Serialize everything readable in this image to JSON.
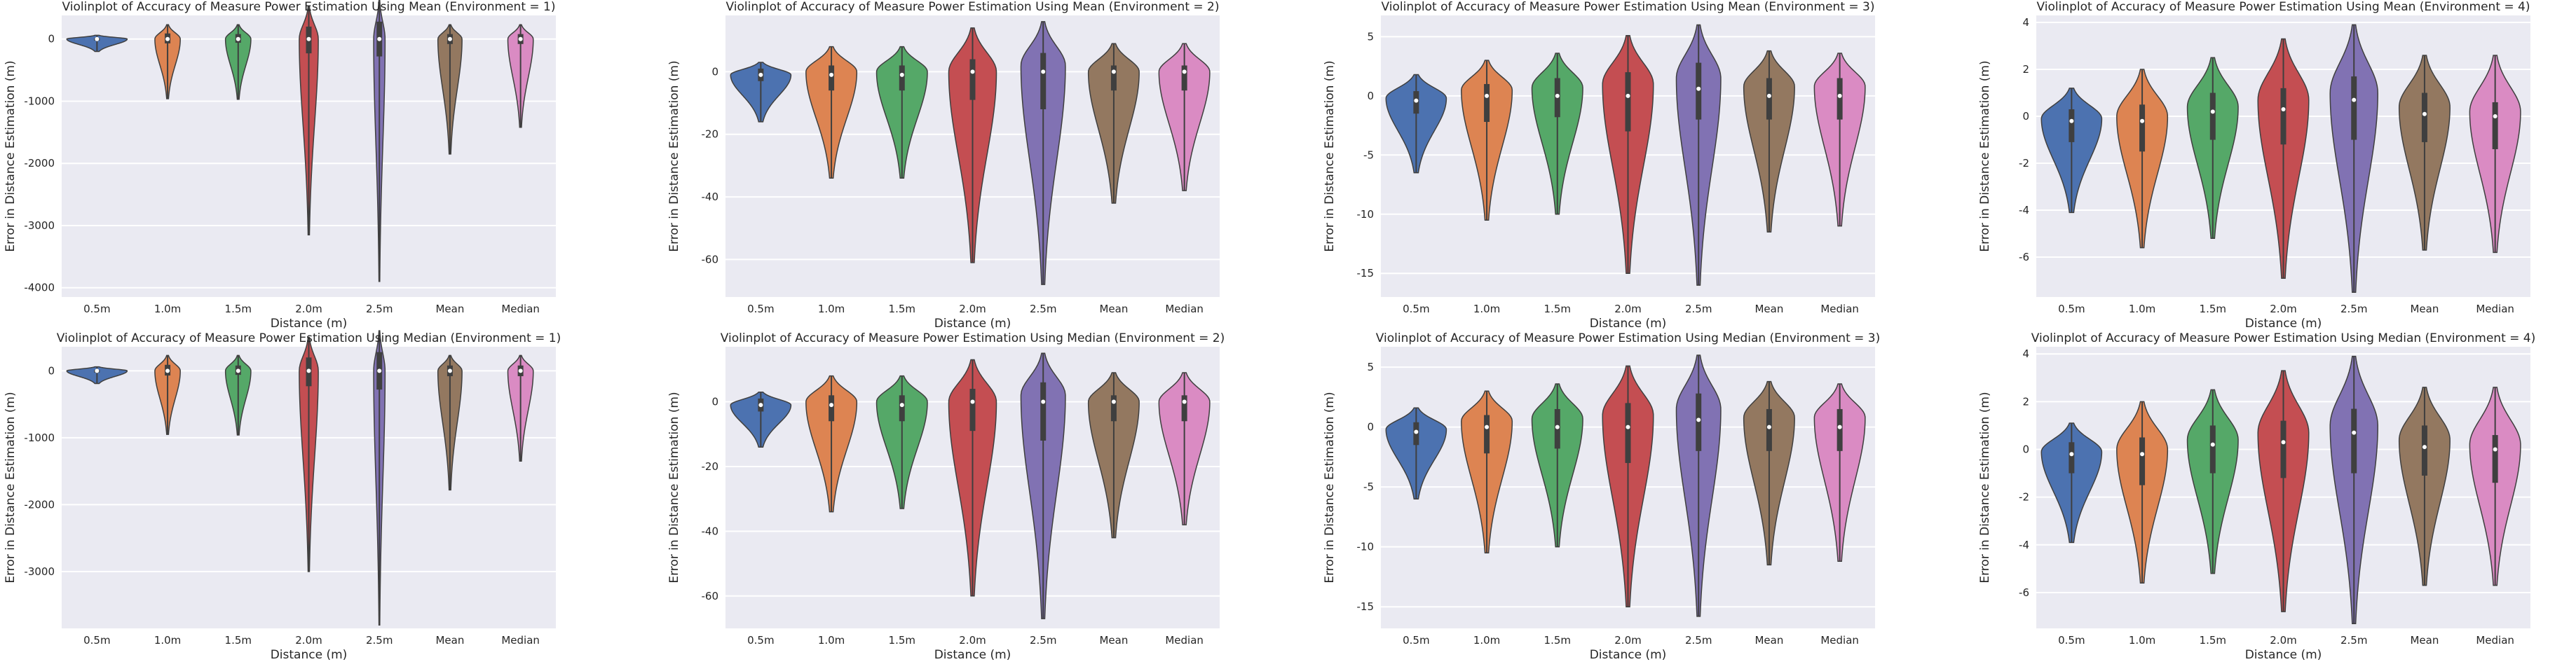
{
  "figure": {
    "background": "#ffffff",
    "plot_background": "#eaeaf2",
    "grid_color": "#ffffff"
  },
  "palette": [
    "#4c72b0",
    "#dd8452",
    "#55a868",
    "#c44e52",
    "#8172b3",
    "#937860",
    "#da8bc3"
  ],
  "chart_data": [
    {
      "type": "violin",
      "title": "Violinplot of Accuracy of Measure Power Estimation Using Mean (Environment = 1)",
      "xlabel": "Distance (m)",
      "ylabel": "Error in Distance Estimation (m)",
      "categories": [
        "0.5m",
        "1.0m",
        "1.5m",
        "2.0m",
        "2.5m",
        "Mean",
        "Median"
      ],
      "ylim": [
        -4150,
        380
      ],
      "yticks": [
        0,
        -1000,
        -2000,
        -3000,
        -4000
      ],
      "grid": true,
      "violins": [
        {
          "min": -200,
          "max": 60,
          "q1": -25,
          "median": 0,
          "q3": 15,
          "peak": 0,
          "width": 0.95
        },
        {
          "min": -960,
          "max": 230,
          "q1": -70,
          "median": 0,
          "q3": 90,
          "peak": 0,
          "width": 0.4
        },
        {
          "min": -970,
          "max": 230,
          "q1": -60,
          "median": 0,
          "q3": 80,
          "peak": 0,
          "width": 0.4
        },
        {
          "min": -3150,
          "max": 520,
          "q1": -230,
          "median": 0,
          "q3": 200,
          "peak": 0,
          "width": 0.3
        },
        {
          "min": -3900,
          "max": 620,
          "q1": -280,
          "median": 0,
          "q3": 280,
          "peak": 0,
          "width": 0.18
        },
        {
          "min": -1850,
          "max": 230,
          "q1": -80,
          "median": 0,
          "q3": 80,
          "peak": 0,
          "width": 0.38
        },
        {
          "min": -1420,
          "max": 230,
          "q1": -80,
          "median": 0,
          "q3": 80,
          "peak": 0,
          "width": 0.4
        }
      ]
    },
    {
      "type": "violin",
      "title": "Violinplot of Accuracy of Measure Power Estimation Using Mean (Environment = 2)",
      "xlabel": "Distance (m)",
      "ylabel": "Error in Distance Estimation (m)",
      "categories": [
        "0.5m",
        "1.0m",
        "1.5m",
        "2.0m",
        "2.5m",
        "Mean",
        "Median"
      ],
      "ylim": [
        -72,
        18
      ],
      "yticks": [
        0,
        -20,
        -40,
        -60
      ],
      "grid": true,
      "violins": [
        {
          "min": -16,
          "max": 3,
          "q1": -3,
          "median": -1,
          "q3": 1,
          "peak": -1,
          "width": 0.95
        },
        {
          "min": -34,
          "max": 8,
          "q1": -6,
          "median": -1,
          "q3": 2,
          "peak": 0,
          "width": 0.8
        },
        {
          "min": -34,
          "max": 8,
          "q1": -6,
          "median": -1,
          "q3": 2,
          "peak": 0,
          "width": 0.8
        },
        {
          "min": -61,
          "max": 14,
          "q1": -9,
          "median": 0,
          "q3": 4,
          "peak": 0,
          "width": 0.75
        },
        {
          "min": -68,
          "max": 16,
          "q1": -12,
          "median": 0,
          "q3": 6,
          "peak": 2,
          "width": 0.7
        },
        {
          "min": -42,
          "max": 9,
          "q1": -6,
          "median": 0,
          "q3": 2,
          "peak": 0,
          "width": 0.8
        },
        {
          "min": -38,
          "max": 9,
          "q1": -6,
          "median": 0,
          "q3": 2,
          "peak": 0,
          "width": 0.8
        }
      ]
    },
    {
      "type": "violin",
      "title": "Violinplot of Accuracy of Measure Power Estimation Using Mean (Environment = 3)",
      "xlabel": "Distance (m)",
      "ylabel": "Error in Distance Estimation (m)",
      "categories": [
        "0.5m",
        "1.0m",
        "1.5m",
        "2.0m",
        "2.5m",
        "Mean",
        "Median"
      ],
      "ylim": [
        -17,
        6.8
      ],
      "yticks": [
        5,
        0,
        -5,
        -10,
        -15
      ],
      "grid": true,
      "violins": [
        {
          "min": -6.5,
          "max": 1.8,
          "q1": -1.5,
          "median": -0.4,
          "q3": 0.4,
          "peak": -0.2,
          "width": 0.95
        },
        {
          "min": -10.5,
          "max": 3,
          "q1": -2.2,
          "median": 0,
          "q3": 1,
          "peak": 0.5,
          "width": 0.8
        },
        {
          "min": -10,
          "max": 3.6,
          "q1": -1.8,
          "median": 0,
          "q3": 1.5,
          "peak": 0.7,
          "width": 0.8
        },
        {
          "min": -15,
          "max": 5.1,
          "q1": -3,
          "median": 0,
          "q3": 2,
          "peak": 1,
          "width": 0.8
        },
        {
          "min": -16,
          "max": 6,
          "q1": -2,
          "median": 0.6,
          "q3": 2.8,
          "peak": 1.5,
          "width": 0.7
        },
        {
          "min": -11.5,
          "max": 3.8,
          "q1": -2,
          "median": 0,
          "q3": 1.5,
          "peak": 0.8,
          "width": 0.8
        },
        {
          "min": -11,
          "max": 3.6,
          "q1": -2,
          "median": 0,
          "q3": 1.5,
          "peak": 0.8,
          "width": 0.8
        }
      ]
    },
    {
      "type": "violin",
      "title": "Violinplot of Accuracy of Measure Power Estimation Using Mean (Environment = 4)",
      "xlabel": "Distance (m)",
      "ylabel": "Error in Distance Estimation (m)",
      "categories": [
        "0.5m",
        "1.0m",
        "1.5m",
        "2.0m",
        "2.5m",
        "Mean",
        "Median"
      ],
      "ylim": [
        -7.7,
        4.3
      ],
      "yticks": [
        4,
        2,
        0,
        -2,
        -4,
        -6
      ],
      "grid": true,
      "violins": [
        {
          "min": -4.1,
          "max": 1.2,
          "q1": -1.1,
          "median": -0.2,
          "q3": 0.3,
          "peak": -0.1,
          "width": 0.95
        },
        {
          "min": -5.6,
          "max": 2,
          "q1": -1.5,
          "median": -0.2,
          "q3": 0.5,
          "peak": 0,
          "width": 0.8
        },
        {
          "min": -5.2,
          "max": 2.5,
          "q1": -1,
          "median": 0.2,
          "q3": 1,
          "peak": 0.4,
          "width": 0.8
        },
        {
          "min": -6.9,
          "max": 3.3,
          "q1": -1.2,
          "median": 0.3,
          "q3": 1.2,
          "peak": 0.7,
          "width": 0.8
        },
        {
          "min": -7.5,
          "max": 3.9,
          "q1": -1,
          "median": 0.7,
          "q3": 1.7,
          "peak": 1,
          "width": 0.75
        },
        {
          "min": -5.7,
          "max": 2.6,
          "q1": -1.1,
          "median": 0.1,
          "q3": 1,
          "peak": 0.4,
          "width": 0.8
        },
        {
          "min": -5.8,
          "max": 2.6,
          "q1": -1.4,
          "median": 0,
          "q3": 0.6,
          "peak": 0.2,
          "width": 0.8
        }
      ]
    },
    {
      "type": "violin",
      "title": "Violinplot of Accuracy of Measure Power Estimation Using Median (Environment = 1)",
      "xlabel": "Distance (m)",
      "ylabel": "Error in Distance Estimation (m)",
      "categories": [
        "0.5m",
        "1.0m",
        "1.5m",
        "2.0m",
        "2.5m",
        "Mean",
        "Median"
      ],
      "ylim": [
        -3850,
        360
      ],
      "yticks": [
        0,
        -1000,
        -2000,
        -3000
      ],
      "grid": true,
      "violins": [
        {
          "min": -190,
          "max": 60,
          "q1": -25,
          "median": 0,
          "q3": 15,
          "peak": 0,
          "width": 0.95
        },
        {
          "min": -950,
          "max": 230,
          "q1": -70,
          "median": 0,
          "q3": 90,
          "peak": 0,
          "width": 0.4
        },
        {
          "min": -960,
          "max": 230,
          "q1": -60,
          "median": 0,
          "q3": 80,
          "peak": 0,
          "width": 0.4
        },
        {
          "min": -3000,
          "max": 500,
          "q1": -230,
          "median": 0,
          "q3": 200,
          "peak": 0,
          "width": 0.3
        },
        {
          "min": -3800,
          "max": 600,
          "q1": -280,
          "median": 0,
          "q3": 280,
          "peak": 0,
          "width": 0.18
        },
        {
          "min": -1780,
          "max": 230,
          "q1": -80,
          "median": 0,
          "q3": 80,
          "peak": 0,
          "width": 0.38
        },
        {
          "min": -1350,
          "max": 230,
          "q1": -80,
          "median": 0,
          "q3": 80,
          "peak": 0,
          "width": 0.4
        }
      ]
    },
    {
      "type": "violin",
      "title": "Violinplot of Accuracy of Measure Power Estimation Using Median (Environment = 2)",
      "xlabel": "Distance (m)",
      "ylabel": "Error in Distance Estimation (m)",
      "categories": [
        "0.5m",
        "1.0m",
        "1.5m",
        "2.0m",
        "2.5m",
        "Mean",
        "Median"
      ],
      "ylim": [
        -70,
        17
      ],
      "yticks": [
        0,
        -20,
        -40,
        -60
      ],
      "grid": true,
      "violins": [
        {
          "min": -14,
          "max": 3,
          "q1": -3,
          "median": -1,
          "q3": 1,
          "peak": -1,
          "width": 0.95
        },
        {
          "min": -34,
          "max": 8,
          "q1": -6,
          "median": -1,
          "q3": 2,
          "peak": 0,
          "width": 0.8
        },
        {
          "min": -33,
          "max": 8,
          "q1": -6,
          "median": -1,
          "q3": 2,
          "peak": 0,
          "width": 0.8
        },
        {
          "min": -60,
          "max": 13,
          "q1": -9,
          "median": 0,
          "q3": 4,
          "peak": 0,
          "width": 0.75
        },
        {
          "min": -67,
          "max": 15,
          "q1": -12,
          "median": 0,
          "q3": 6,
          "peak": 2,
          "width": 0.7
        },
        {
          "min": -42,
          "max": 9,
          "q1": -6,
          "median": 0,
          "q3": 2,
          "peak": 0,
          "width": 0.8
        },
        {
          "min": -38,
          "max": 9,
          "q1": -6,
          "median": 0,
          "q3": 2,
          "peak": 0,
          "width": 0.8
        }
      ]
    },
    {
      "type": "violin",
      "title": "Violinplot of Accuracy of Measure Power Estimation Using Median (Environment = 3)",
      "xlabel": "Distance (m)",
      "ylabel": "Error in Distance Estimation (m)",
      "categories": [
        "0.5m",
        "1.0m",
        "1.5m",
        "2.0m",
        "2.5m",
        "Mean",
        "Median"
      ],
      "ylim": [
        -16.8,
        6.7
      ],
      "yticks": [
        5,
        0,
        -5,
        -10,
        -15
      ],
      "grid": true,
      "violins": [
        {
          "min": -6,
          "max": 1.6,
          "q1": -1.5,
          "median": -0.4,
          "q3": 0.4,
          "peak": -0.2,
          "width": 0.95
        },
        {
          "min": -10.5,
          "max": 3,
          "q1": -2.2,
          "median": 0,
          "q3": 1,
          "peak": 0.5,
          "width": 0.8
        },
        {
          "min": -10,
          "max": 3.6,
          "q1": -1.8,
          "median": 0,
          "q3": 1.5,
          "peak": 0.7,
          "width": 0.8
        },
        {
          "min": -15,
          "max": 5.1,
          "q1": -3,
          "median": 0,
          "q3": 2,
          "peak": 1,
          "width": 0.8
        },
        {
          "min": -15.8,
          "max": 6,
          "q1": -2,
          "median": 0.6,
          "q3": 2.8,
          "peak": 1.5,
          "width": 0.7
        },
        {
          "min": -11.5,
          "max": 3.8,
          "q1": -2,
          "median": 0,
          "q3": 1.5,
          "peak": 0.8,
          "width": 0.8
        },
        {
          "min": -11.2,
          "max": 3.6,
          "q1": -2,
          "median": 0,
          "q3": 1.5,
          "peak": 0.8,
          "width": 0.8
        }
      ]
    },
    {
      "type": "violin",
      "title": "Violinplot of Accuracy of Measure Power Estimation Using Median (Environment = 4)",
      "xlabel": "Distance (m)",
      "ylabel": "Error in Distance Estimation (m)",
      "categories": [
        "0.5m",
        "1.0m",
        "1.5m",
        "2.0m",
        "2.5m",
        "Mean",
        "Median"
      ],
      "ylim": [
        -7.5,
        4.3
      ],
      "yticks": [
        4,
        2,
        0,
        -2,
        -4,
        -6
      ],
      "grid": true,
      "violins": [
        {
          "min": -3.9,
          "max": 1.1,
          "q1": -1,
          "median": -0.2,
          "q3": 0.3,
          "peak": -0.1,
          "width": 0.95
        },
        {
          "min": -5.6,
          "max": 2,
          "q1": -1.5,
          "median": -0.2,
          "q3": 0.5,
          "peak": 0,
          "width": 0.8
        },
        {
          "min": -5.2,
          "max": 2.5,
          "q1": -1,
          "median": 0.2,
          "q3": 1,
          "peak": 0.4,
          "width": 0.8
        },
        {
          "min": -6.8,
          "max": 3.3,
          "q1": -1.2,
          "median": 0.3,
          "q3": 1.2,
          "peak": 0.7,
          "width": 0.8
        },
        {
          "min": -7.3,
          "max": 3.9,
          "q1": -1,
          "median": 0.7,
          "q3": 1.7,
          "peak": 1,
          "width": 0.75
        },
        {
          "min": -5.7,
          "max": 2.6,
          "q1": -1.1,
          "median": 0.1,
          "q3": 1,
          "peak": 0.4,
          "width": 0.8
        },
        {
          "min": -5.7,
          "max": 2.6,
          "q1": -1.4,
          "median": 0,
          "q3": 0.6,
          "peak": 0.2,
          "width": 0.8
        }
      ]
    }
  ]
}
